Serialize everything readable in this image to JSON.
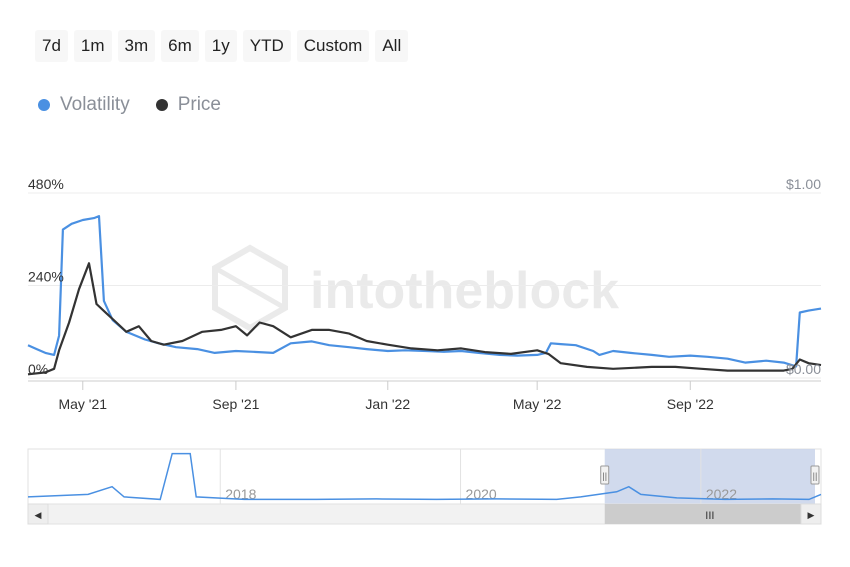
{
  "range_buttons": [
    "7d",
    "1m",
    "3m",
    "6m",
    "1y",
    "YTD",
    "Custom",
    "All"
  ],
  "legend": [
    {
      "label": "Volatility",
      "color": "#4a90e2"
    },
    {
      "label": "Price",
      "color": "#333333"
    }
  ],
  "watermark": "intotheblock",
  "chart_data": {
    "type": "line",
    "left_axis": {
      "ticks": [
        "480%",
        "240%",
        "0%"
      ],
      "range": [
        0,
        480
      ]
    },
    "right_axis": {
      "ticks": [
        "$1.00",
        "$0.00"
      ],
      "range": [
        0,
        1
      ]
    },
    "x_ticks": [
      "May '21",
      "Sep '21",
      "Jan '22",
      "May '22",
      "Sep '22"
    ],
    "x_range": [
      "2021-03-18",
      "2022-12-15"
    ],
    "series": [
      {
        "name": "Volatility",
        "axis": "left",
        "color": "#4a90e2",
        "points": [
          [
            "2021-03-18",
            85
          ],
          [
            "2021-03-25",
            75
          ],
          [
            "2021-04-01",
            65
          ],
          [
            "2021-04-08",
            60
          ],
          [
            "2021-04-12",
            110
          ],
          [
            "2021-04-15",
            385
          ],
          [
            "2021-04-22",
            400
          ],
          [
            "2021-05-01",
            410
          ],
          [
            "2021-05-10",
            415
          ],
          [
            "2021-05-14",
            420
          ],
          [
            "2021-05-18",
            200
          ],
          [
            "2021-05-25",
            150
          ],
          [
            "2021-06-05",
            120
          ],
          [
            "2021-06-20",
            100
          ],
          [
            "2021-07-01",
            90
          ],
          [
            "2021-07-15",
            80
          ],
          [
            "2021-08-01",
            75
          ],
          [
            "2021-08-15",
            65
          ],
          [
            "2021-09-01",
            70
          ],
          [
            "2021-09-15",
            68
          ],
          [
            "2021-10-01",
            65
          ],
          [
            "2021-10-15",
            90
          ],
          [
            "2021-11-01",
            95
          ],
          [
            "2021-11-15",
            85
          ],
          [
            "2021-12-01",
            80
          ],
          [
            "2021-12-15",
            75
          ],
          [
            "2022-01-01",
            70
          ],
          [
            "2022-01-15",
            72
          ],
          [
            "2022-02-01",
            70
          ],
          [
            "2022-02-15",
            68
          ],
          [
            "2022-03-01",
            70
          ],
          [
            "2022-03-15",
            65
          ],
          [
            "2022-04-01",
            60
          ],
          [
            "2022-04-15",
            58
          ],
          [
            "2022-05-01",
            60
          ],
          [
            "2022-05-08",
            65
          ],
          [
            "2022-05-12",
            90
          ],
          [
            "2022-05-20",
            88
          ],
          [
            "2022-06-01",
            85
          ],
          [
            "2022-06-15",
            70
          ],
          [
            "2022-06-20",
            60
          ],
          [
            "2022-07-01",
            70
          ],
          [
            "2022-07-15",
            65
          ],
          [
            "2022-08-01",
            60
          ],
          [
            "2022-08-15",
            55
          ],
          [
            "2022-09-01",
            58
          ],
          [
            "2022-09-15",
            55
          ],
          [
            "2022-10-01",
            50
          ],
          [
            "2022-10-15",
            40
          ],
          [
            "2022-11-01",
            45
          ],
          [
            "2022-11-15",
            40
          ],
          [
            "2022-11-25",
            30
          ],
          [
            "2022-11-28",
            170
          ],
          [
            "2022-12-05",
            175
          ],
          [
            "2022-12-15",
            180
          ]
        ]
      },
      {
        "name": "Price",
        "axis": "right",
        "color": "#333333",
        "points": [
          [
            "2021-03-18",
            0.02
          ],
          [
            "2021-04-01",
            0.03
          ],
          [
            "2021-04-08",
            0.05
          ],
          [
            "2021-04-12",
            0.15
          ],
          [
            "2021-04-20",
            0.3
          ],
          [
            "2021-04-28",
            0.48
          ],
          [
            "2021-05-06",
            0.62
          ],
          [
            "2021-05-12",
            0.4
          ],
          [
            "2021-05-20",
            0.35
          ],
          [
            "2021-05-28",
            0.3
          ],
          [
            "2021-06-05",
            0.25
          ],
          [
            "2021-06-15",
            0.28
          ],
          [
            "2021-06-25",
            0.2
          ],
          [
            "2021-07-05",
            0.18
          ],
          [
            "2021-07-20",
            0.2
          ],
          [
            "2021-08-05",
            0.25
          ],
          [
            "2021-08-20",
            0.26
          ],
          [
            "2021-09-01",
            0.28
          ],
          [
            "2021-09-10",
            0.23
          ],
          [
            "2021-09-20",
            0.3
          ],
          [
            "2021-10-01",
            0.28
          ],
          [
            "2021-10-15",
            0.22
          ],
          [
            "2021-11-01",
            0.26
          ],
          [
            "2021-11-15",
            0.26
          ],
          [
            "2021-12-01",
            0.24
          ],
          [
            "2021-12-15",
            0.2
          ],
          [
            "2022-01-01",
            0.18
          ],
          [
            "2022-01-20",
            0.16
          ],
          [
            "2022-02-10",
            0.15
          ],
          [
            "2022-03-01",
            0.16
          ],
          [
            "2022-03-20",
            0.14
          ],
          [
            "2022-04-10",
            0.13
          ],
          [
            "2022-05-01",
            0.15
          ],
          [
            "2022-05-10",
            0.13
          ],
          [
            "2022-05-20",
            0.08
          ],
          [
            "2022-06-10",
            0.06
          ],
          [
            "2022-07-01",
            0.05
          ],
          [
            "2022-08-01",
            0.06
          ],
          [
            "2022-08-20",
            0.06
          ],
          [
            "2022-09-10",
            0.05
          ],
          [
            "2022-10-01",
            0.04
          ],
          [
            "2022-11-01",
            0.04
          ],
          [
            "2022-11-15",
            0.04
          ],
          [
            "2022-11-22",
            0.05
          ],
          [
            "2022-11-28",
            0.1
          ],
          [
            "2022-12-05",
            0.08
          ],
          [
            "2022-12-15",
            0.07
          ]
        ]
      }
    ]
  },
  "navigator": {
    "ticks": [
      "2018",
      "2020",
      "2022"
    ],
    "x_range": [
      2016.4,
      2023.0
    ],
    "selection": [
      2021.2,
      2022.95
    ],
    "handle_glyph": "||",
    "scrollbar_grip": "III",
    "left_arrow": "◀",
    "right_arrow": "▶",
    "volatility_overview": [
      [
        2016.4,
        0.1
      ],
      [
        2016.9,
        0.15
      ],
      [
        2017.1,
        0.3
      ],
      [
        2017.2,
        0.1
      ],
      [
        2017.5,
        0.05
      ],
      [
        2017.6,
        0.95
      ],
      [
        2017.75,
        0.95
      ],
      [
        2017.8,
        0.1
      ],
      [
        2018.2,
        0.05
      ],
      [
        2018.8,
        0.05
      ],
      [
        2019.3,
        0.06
      ],
      [
        2019.8,
        0.05
      ],
      [
        2020.3,
        0.06
      ],
      [
        2020.8,
        0.05
      ],
      [
        2021.0,
        0.1
      ],
      [
        2021.3,
        0.2
      ],
      [
        2021.4,
        0.3
      ],
      [
        2021.5,
        0.15
      ],
      [
        2021.8,
        0.08
      ],
      [
        2022.2,
        0.05
      ],
      [
        2022.6,
        0.06
      ],
      [
        2022.9,
        0.05
      ],
      [
        2023.0,
        0.15
      ]
    ]
  }
}
